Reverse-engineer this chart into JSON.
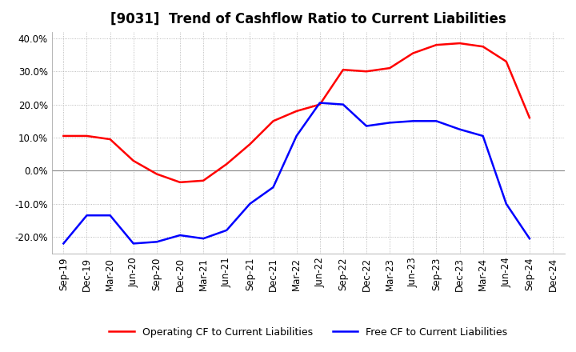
{
  "title": "[9031]  Trend of Cashflow Ratio to Current Liabilities",
  "x_labels": [
    "Sep-19",
    "Dec-19",
    "Mar-20",
    "Jun-20",
    "Sep-20",
    "Dec-20",
    "Mar-21",
    "Jun-21",
    "Sep-21",
    "Dec-21",
    "Mar-22",
    "Jun-22",
    "Sep-22",
    "Dec-22",
    "Mar-23",
    "Jun-23",
    "Sep-23",
    "Dec-23",
    "Mar-24",
    "Jun-24",
    "Sep-24",
    "Dec-24"
  ],
  "operating_cf": [
    10.5,
    10.5,
    9.5,
    3.0,
    -1.0,
    -3.5,
    -3.0,
    2.0,
    8.0,
    15.0,
    18.0,
    20.0,
    30.5,
    30.0,
    31.0,
    35.5,
    38.0,
    38.5,
    37.5,
    33.0,
    16.0,
    null
  ],
  "free_cf": [
    -22.0,
    -13.5,
    -13.5,
    -22.0,
    -21.5,
    -19.5,
    -20.5,
    -18.0,
    -10.0,
    -5.0,
    10.5,
    20.5,
    20.0,
    13.5,
    14.5,
    15.0,
    15.0,
    12.5,
    10.5,
    -10.0,
    -20.5,
    null
  ],
  "ylim": [
    -25,
    42
  ],
  "yticks": [
    -20.0,
    -10.0,
    0.0,
    10.0,
    20.0,
    30.0,
    40.0
  ],
  "operating_color": "#ff0000",
  "free_color": "#0000ff",
  "grid_color": "#aaaaaa",
  "background_color": "#ffffff",
  "plot_bg_color": "#ffffff",
  "legend_op": "Operating CF to Current Liabilities",
  "legend_free": "Free CF to Current Liabilities",
  "title_fontsize": 12,
  "tick_fontsize": 8.5
}
